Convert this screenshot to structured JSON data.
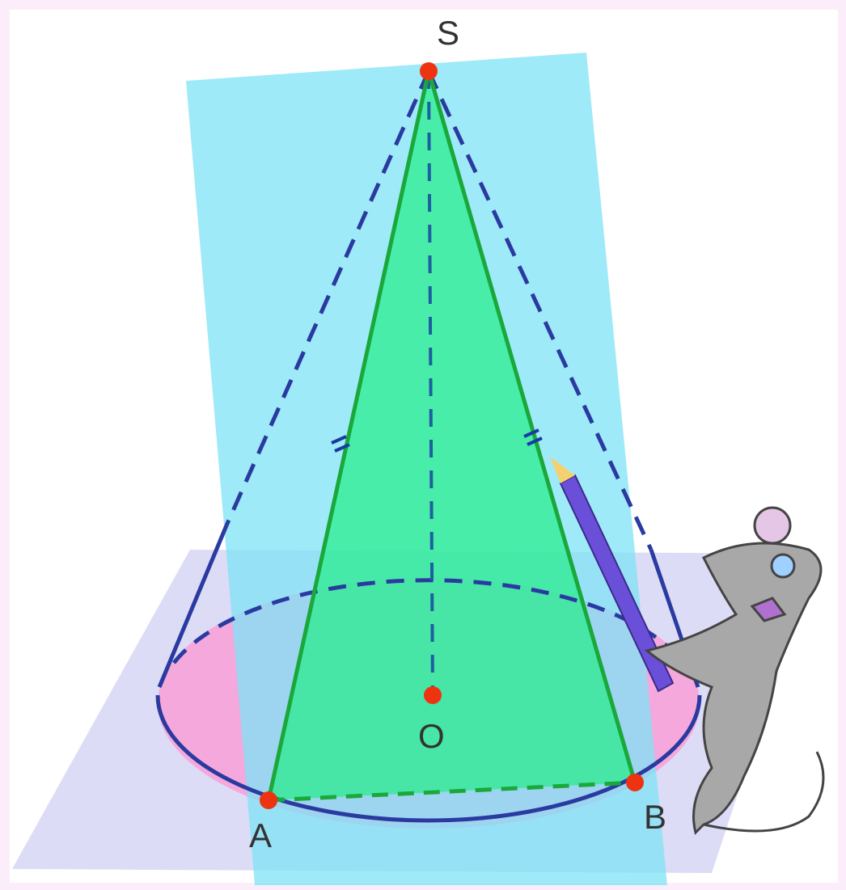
{
  "points": {
    "S": "S",
    "O": "O",
    "A": "A",
    "B": "B"
  }
}
